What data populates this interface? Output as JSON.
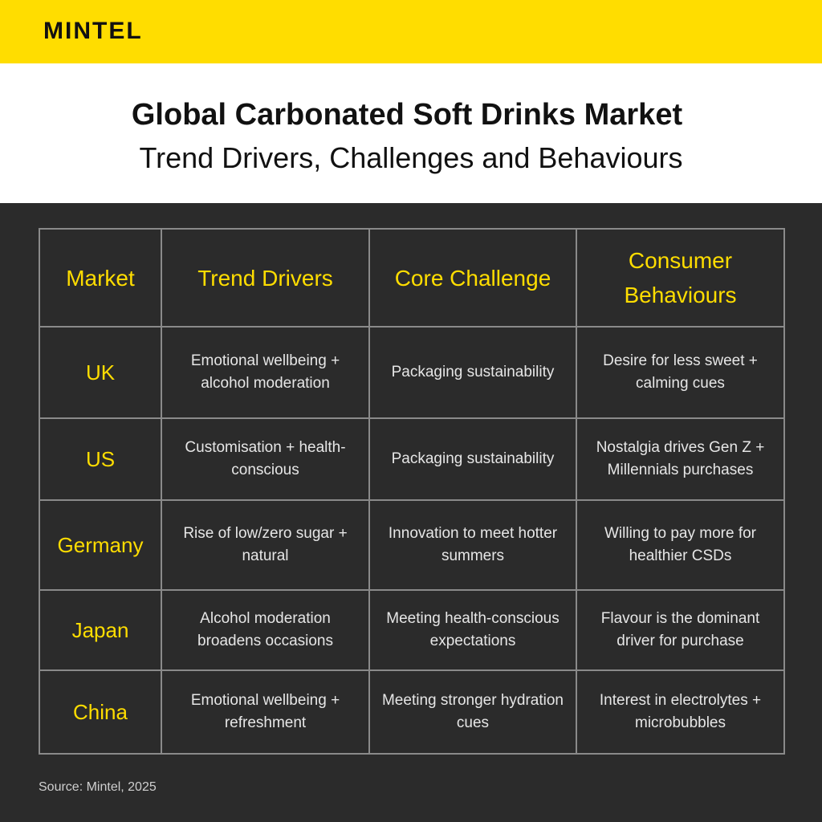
{
  "brand": {
    "logo": "MINTEL"
  },
  "header": {
    "title": "Global Carbonated Soft Drinks Market",
    "subtitle": "Trend Drivers, Challenges and Behaviours"
  },
  "table": {
    "columns": [
      "Market",
      "Trend Drivers",
      "Core Challenge",
      "Consumer Behaviours"
    ],
    "rows": [
      {
        "market": "UK",
        "drivers": "Emotional wellbeing + alcohol moderation",
        "challenge": "Packaging sustainability",
        "behaviours": "Desire for less sweet + calming cues"
      },
      {
        "market": "US",
        "drivers": "Customisation + health-conscious",
        "challenge": "Packaging sustainability",
        "behaviours": "Nostalgia drives Gen Z + Millennials purchases"
      },
      {
        "market": "Germany",
        "drivers": "Rise of low/zero sugar + natural",
        "challenge": "Innovation to meet hotter summers",
        "behaviours": "Willing to pay more for healthier CSDs"
      },
      {
        "market": "Japan",
        "drivers": "Alcohol moderation broadens occasions",
        "challenge": "Meeting health-conscious expectations",
        "behaviours": "Flavour is the dominant driver for purchase"
      },
      {
        "market": "China",
        "drivers": "Emotional wellbeing + refreshment",
        "challenge": "Meeting stronger hydration cues",
        "behaviours": "Interest in electrolytes + microbubbles"
      }
    ]
  },
  "footer": {
    "source": "Source: Mintel, 2025"
  },
  "colors": {
    "accent": "#ffdd00",
    "background": "#2b2b2b",
    "border": "#8a8a8a"
  }
}
